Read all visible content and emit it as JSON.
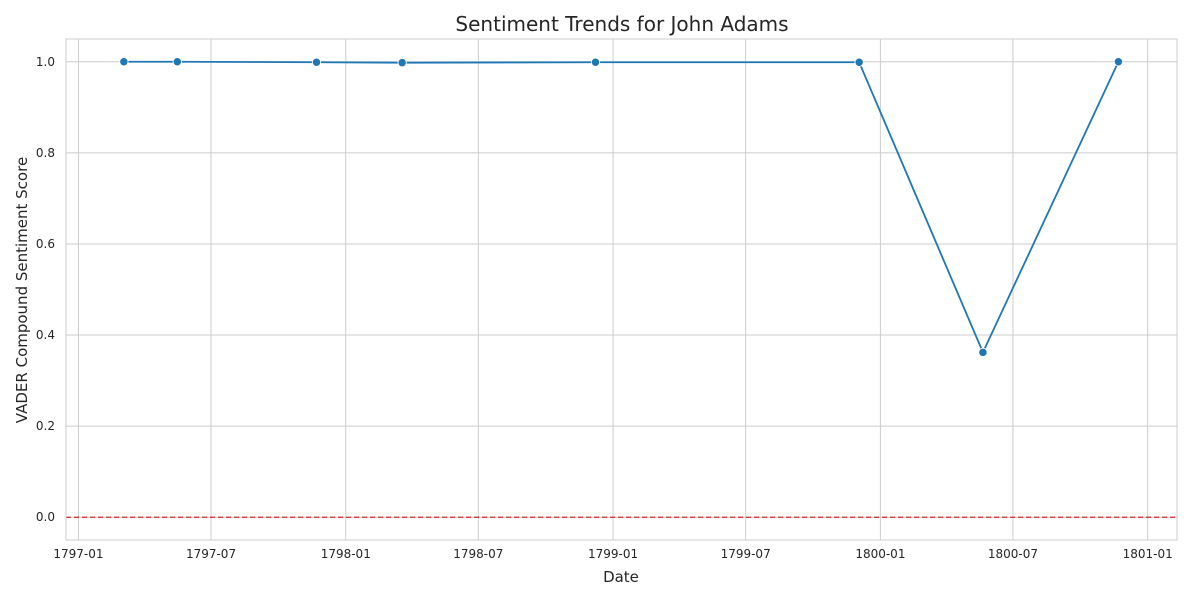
{
  "chart_data": {
    "type": "line",
    "title": "Sentiment Trends for John Adams",
    "xlabel": "Date",
    "ylabel": "VADER Compound Sentiment Score",
    "x_ticks": [
      "1797-01",
      "1797-07",
      "1798-01",
      "1798-07",
      "1799-01",
      "1799-07",
      "1800-01",
      "1800-07",
      "1801-01"
    ],
    "y_ticks": [
      "0.0",
      "0.2",
      "0.4",
      "0.6",
      "0.8",
      "1.0"
    ],
    "xlim": [
      "1796-12-15",
      "1801-02-10"
    ],
    "ylim": [
      -0.05,
      1.05
    ],
    "grid": true,
    "series": [
      {
        "color": "#1f77b4",
        "marker": "circle",
        "points": [
          {
            "date": "1797-03-04",
            "value": 1.0
          },
          {
            "date": "1797-05-16",
            "value": 1.0
          },
          {
            "date": "1797-11-22",
            "value": 0.999
          },
          {
            "date": "1798-03-19",
            "value": 0.998
          },
          {
            "date": "1798-12-08",
            "value": 0.999
          },
          {
            "date": "1799-12-03",
            "value": 0.999
          },
          {
            "date": "1800-05-21",
            "value": 0.362
          },
          {
            "date": "1800-11-22",
            "value": 1.0
          }
        ]
      }
    ],
    "reference_line": {
      "value": 0.0,
      "color": "#d62728",
      "style": "dashed"
    }
  }
}
